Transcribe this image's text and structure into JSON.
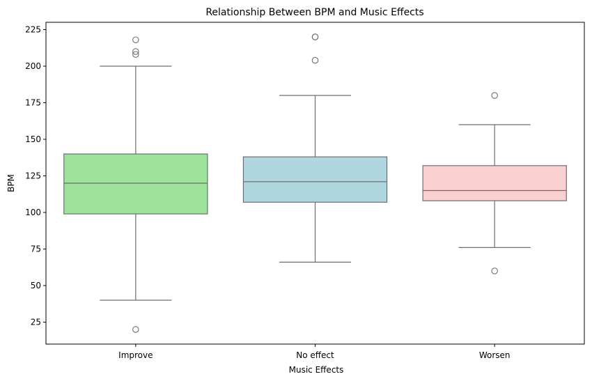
{
  "chart_data": {
    "type": "box",
    "title": "Relationship Between BPM and Music Effects",
    "xlabel": "Music Effects",
    "ylabel": "BPM",
    "ylim": [
      10,
      230
    ],
    "yticks": [
      25,
      50,
      75,
      100,
      125,
      150,
      175,
      200,
      225
    ],
    "grid": false,
    "legend": "none",
    "categories": [
      "Improve",
      "No effect",
      "Worsen"
    ],
    "boxes": [
      {
        "category": "Improve",
        "color": "#9de39a",
        "q1": 99,
        "median": 120,
        "q3": 140,
        "whisker_low": 40,
        "whisker_high": 200,
        "outliers": [
          20,
          208,
          210,
          218
        ]
      },
      {
        "category": "No effect",
        "color": "#b0d6e0",
        "q1": 107,
        "median": 121,
        "q3": 138,
        "whisker_low": 66,
        "whisker_high": 180,
        "outliers": [
          204,
          220,
          220
        ]
      },
      {
        "category": "Worsen",
        "color": "#fbd0d0",
        "q1": 108,
        "median": 115,
        "q3": 132,
        "whisker_low": 76,
        "whisker_high": 160,
        "outliers": [
          60,
          180
        ]
      }
    ]
  }
}
